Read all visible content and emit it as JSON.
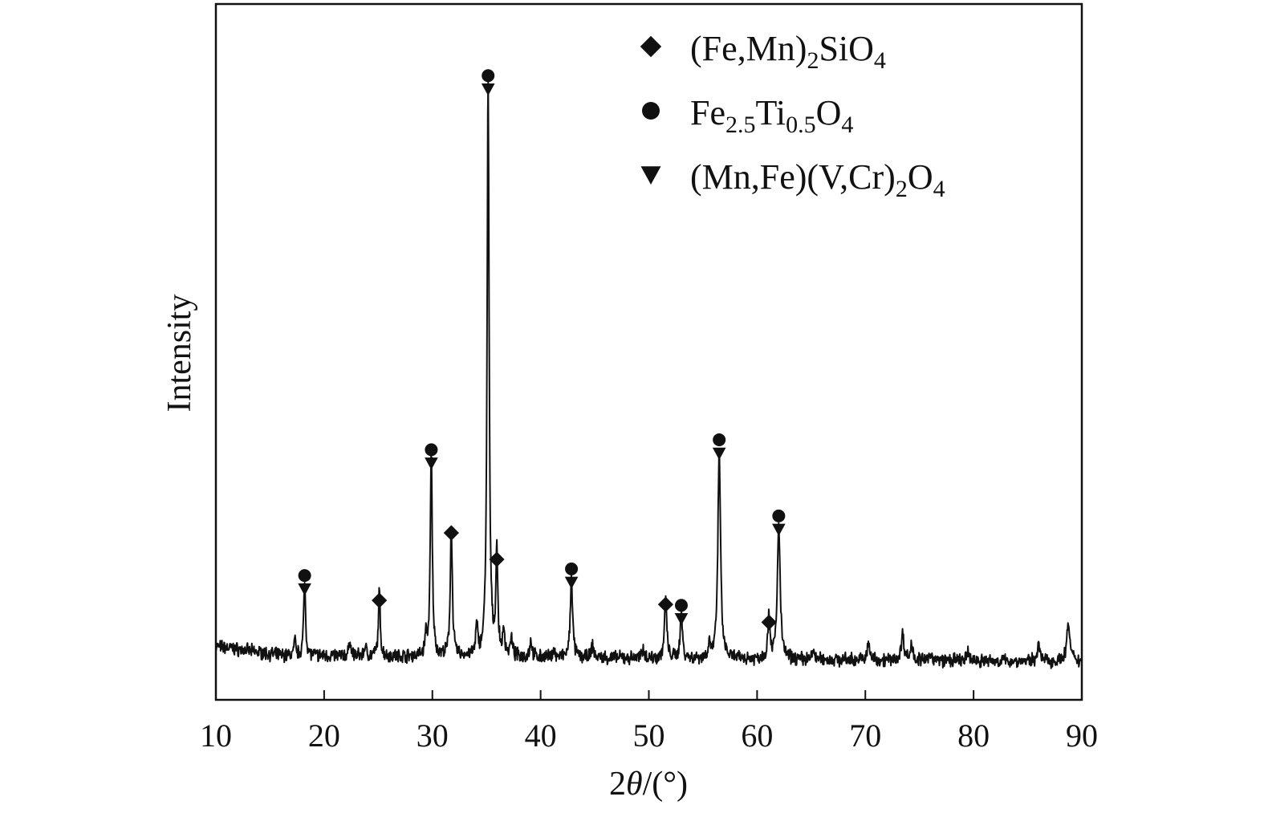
{
  "chart_data": {
    "type": "line",
    "title": "",
    "xlabel": "2θ/(°)",
    "xlabel_parts": {
      "num": "2",
      "theta": "θ",
      "unit": "/(°)"
    },
    "ylabel": "Intensity",
    "xlim": [
      10,
      90
    ],
    "ylim": [
      0,
      100
    ],
    "x_ticks": [
      10,
      20,
      30,
      40,
      50,
      60,
      70,
      80,
      90
    ],
    "x_tick_labels": [
      "10",
      "20",
      "30",
      "40",
      "50",
      "60",
      "70",
      "80",
      "90"
    ],
    "y_ticks_shown": false,
    "grid": false,
    "legend_position": "top-right",
    "colors": {
      "line": "#111111",
      "markers": "#111111",
      "axes": "#111111"
    },
    "baseline": 3.5,
    "series": [
      {
        "peaks": [
          {
            "x": 17.3,
            "h": 2.2,
            "w": 0.09
          },
          {
            "x": 18.2,
            "h": 11.5,
            "w": 0.1
          },
          {
            "x": 22.4,
            "h": 2.5,
            "w": 0.1
          },
          {
            "x": 23.8,
            "h": 1.6,
            "w": 0.1
          },
          {
            "x": 25.1,
            "h": 9.8,
            "w": 0.1
          },
          {
            "x": 29.4,
            "h": 3.0,
            "w": 0.1
          },
          {
            "x": 29.9,
            "h": 30.5,
            "w": 0.11
          },
          {
            "x": 31.75,
            "h": 20.0,
            "w": 0.11
          },
          {
            "x": 34.1,
            "h": 4.5,
            "w": 0.1
          },
          {
            "x": 35.15,
            "h": 87.0,
            "w": 0.11
          },
          {
            "x": 35.95,
            "h": 16.0,
            "w": 0.1
          },
          {
            "x": 36.6,
            "h": 3.5,
            "w": 0.12
          },
          {
            "x": 37.3,
            "h": 2.5,
            "w": 0.12
          },
          {
            "x": 39.1,
            "h": 2.5,
            "w": 0.12
          },
          {
            "x": 41.2,
            "h": 1.3,
            "w": 0.1
          },
          {
            "x": 42.85,
            "h": 12.5,
            "w": 0.12
          },
          {
            "x": 44.8,
            "h": 1.8,
            "w": 0.12
          },
          {
            "x": 49.5,
            "h": 1.5,
            "w": 0.12
          },
          {
            "x": 51.55,
            "h": 9.2,
            "w": 0.12
          },
          {
            "x": 53.0,
            "h": 7.0,
            "w": 0.12
          },
          {
            "x": 55.6,
            "h": 2.2,
            "w": 0.12
          },
          {
            "x": 56.5,
            "h": 32.0,
            "w": 0.14
          },
          {
            "x": 61.1,
            "h": 6.5,
            "w": 0.12
          },
          {
            "x": 62.0,
            "h": 20.5,
            "w": 0.15
          },
          {
            "x": 65.2,
            "h": 1.3,
            "w": 0.12
          },
          {
            "x": 70.3,
            "h": 2.5,
            "w": 0.13
          },
          {
            "x": 73.45,
            "h": 4.0,
            "w": 0.15
          },
          {
            "x": 74.3,
            "h": 2.5,
            "w": 0.13
          },
          {
            "x": 76.1,
            "h": 1.0,
            "w": 0.12
          },
          {
            "x": 79.5,
            "h": 1.3,
            "w": 0.12
          },
          {
            "x": 86.0,
            "h": 2.5,
            "w": 0.15
          },
          {
            "x": 88.75,
            "h": 5.5,
            "w": 0.18
          }
        ]
      }
    ],
    "legend": [
      {
        "marker": "diamond",
        "label_parts": [
          {
            "t": "(Fe,Mn)"
          },
          {
            "t": "2",
            "sub": true
          },
          {
            "t": "SiO"
          },
          {
            "t": "4",
            "sub": true
          }
        ]
      },
      {
        "marker": "circle",
        "label_parts": [
          {
            "t": "Fe"
          },
          {
            "t": "2.5",
            "sub": true
          },
          {
            "t": "Ti"
          },
          {
            "t": "0.5",
            "sub": true
          },
          {
            "t": "O"
          },
          {
            "t": "4",
            "sub": true
          }
        ]
      },
      {
        "marker": "triangle",
        "label_parts": [
          {
            "t": "(Mn,Fe)(V,Cr)"
          },
          {
            "t": "2",
            "sub": true
          },
          {
            "t": "O"
          },
          {
            "t": "4",
            "sub": true
          }
        ]
      }
    ],
    "annotations": [
      {
        "x": 18.2,
        "y": 11.5,
        "markers": [
          "circle",
          "triangle"
        ]
      },
      {
        "x": 25.1,
        "y": 9.8,
        "markers": [
          "diamond"
        ]
      },
      {
        "x": 29.9,
        "y": 30.5,
        "markers": [
          "circle",
          "triangle"
        ]
      },
      {
        "x": 31.75,
        "y": 20.0,
        "markers": [
          "diamond"
        ]
      },
      {
        "x": 35.15,
        "y": 87.0,
        "markers": [
          "circle",
          "triangle"
        ]
      },
      {
        "x": 35.95,
        "y": 16.0,
        "markers": [
          "diamond"
        ]
      },
      {
        "x": 42.85,
        "y": 12.5,
        "markers": [
          "circle",
          "triangle"
        ]
      },
      {
        "x": 51.55,
        "y": 9.2,
        "markers": [
          "diamond"
        ]
      },
      {
        "x": 53.0,
        "y": 7.0,
        "markers": [
          "circle",
          "triangle"
        ]
      },
      {
        "x": 56.5,
        "y": 32.0,
        "markers": [
          "circle",
          "triangle"
        ]
      },
      {
        "x": 61.1,
        "y": 6.5,
        "markers": [
          "diamond"
        ]
      },
      {
        "x": 62.0,
        "y": 20.5,
        "markers": [
          "circle",
          "triangle"
        ]
      }
    ]
  }
}
